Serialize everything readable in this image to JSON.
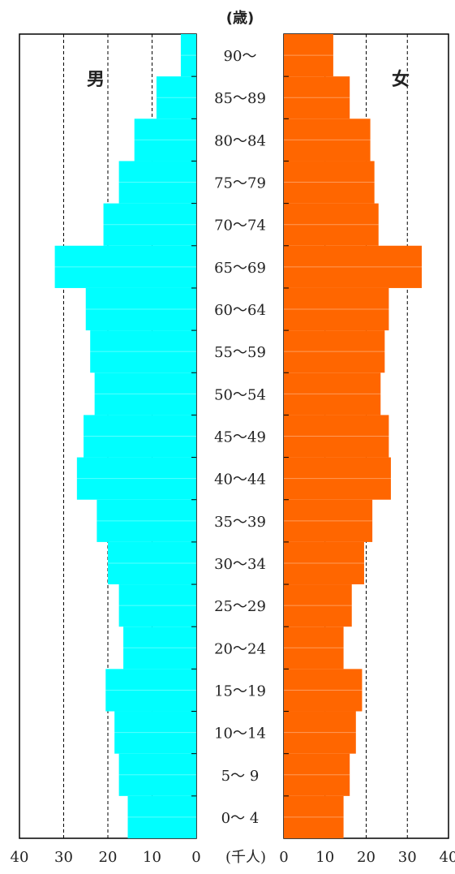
{
  "chart_data": {
    "type": "bar",
    "title": "",
    "age_axis_label": "(歳)",
    "x_unit_label": "(千人)",
    "age_groups": [
      "0～ 4",
      "5～ 9",
      "10～14",
      "15～19",
      "20～24",
      "25～29",
      "30～34",
      "35～39",
      "40～44",
      "45～49",
      "50～54",
      "55～59",
      "60～64",
      "65～69",
      "70～74",
      "75～79",
      "80～84",
      "85～89",
      "90～"
    ],
    "xlim": [
      0,
      40
    ],
    "male_ticks": [
      "40",
      "30",
      "20",
      "10",
      "0"
    ],
    "female_ticks": [
      "0",
      "10",
      "20",
      "30",
      "40"
    ],
    "grid": "dashed vertical at 10, 20, 30",
    "series": [
      {
        "name": "男",
        "color": "#00ffff",
        "values": [
          15.5,
          17.5,
          18.5,
          20.5,
          16.5,
          17.5,
          20,
          22.5,
          27,
          25.5,
          23,
          24,
          25,
          32,
          21,
          17.5,
          14,
          9,
          3.5
        ]
      },
      {
        "name": "女",
        "color": "#ff6600",
        "values": [
          14.5,
          16,
          17.5,
          19,
          14.5,
          16.5,
          19.5,
          21.5,
          26,
          25.5,
          23.5,
          24.5,
          25.5,
          33.5,
          23,
          22,
          21,
          16,
          12
        ]
      }
    ]
  }
}
